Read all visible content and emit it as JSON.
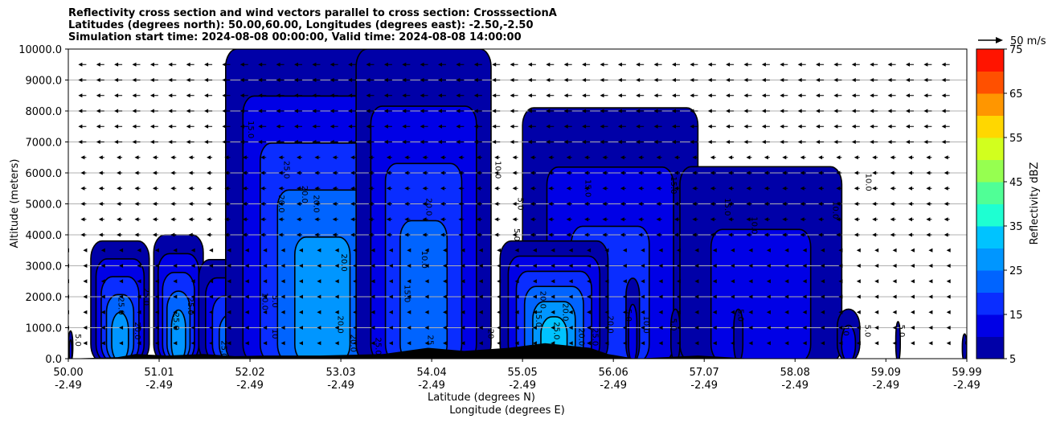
{
  "chart_data": {
    "type": "contour",
    "title": {
      "line1": "Reflectivity cross section and wind vectors parallel to cross section: CrosssectionA",
      "line2": "Latitudes (degrees north): 50.00,60.00, Longitudes (degrees east): -2.50,-2.50",
      "line3": "Simulation start time: 2024-08-08 00:00:00, Valid time: 2024-08-08 14:00:00"
    },
    "ylabel": "Altitude (meters)",
    "xlabel_lat": "Latitude (degrees N)",
    "xlabel_lon": "Longitude (degrees E)",
    "xlim": [
      50.0,
      59.99
    ],
    "ylim": [
      0,
      10000
    ],
    "x_ticks": [
      {
        "lat": "50.00",
        "lon": "-2.49",
        "value": 50.0
      },
      {
        "lat": "51.01",
        "lon": "-2.49",
        "value": 51.01
      },
      {
        "lat": "52.02",
        "lon": "-2.49",
        "value": 52.02
      },
      {
        "lat": "53.03",
        "lon": "-2.49",
        "value": 53.03
      },
      {
        "lat": "54.04",
        "lon": "-2.49",
        "value": 54.04
      },
      {
        "lat": "55.05",
        "lon": "-2.49",
        "value": 55.05
      },
      {
        "lat": "56.06",
        "lon": "-2.49",
        "value": 56.06
      },
      {
        "lat": "57.07",
        "lon": "-2.49",
        "value": 57.07
      },
      {
        "lat": "58.08",
        "lon": "-2.49",
        "value": 58.08
      },
      {
        "lat": "59.09",
        "lon": "-2.49",
        "value": 59.09
      },
      {
        "lat": "59.99",
        "lon": "-2.49",
        "value": 59.99
      }
    ],
    "y_ticks": [
      {
        "label": "0.0",
        "value": 0
      },
      {
        "label": "1000.0",
        "value": 1000
      },
      {
        "label": "2000.0",
        "value": 2000
      },
      {
        "label": "3000.0",
        "value": 3000
      },
      {
        "label": "4000.0",
        "value": 4000
      },
      {
        "label": "5000.0",
        "value": 5000
      },
      {
        "label": "6000.0",
        "value": 6000
      },
      {
        "label": "7000.0",
        "value": 7000
      },
      {
        "label": "8000.0",
        "value": 8000
      },
      {
        "label": "9000.0",
        "value": 9000
      },
      {
        "label": "10000.0",
        "value": 10000
      }
    ],
    "grid": "horizontal",
    "vector_key": "50 m/s",
    "colorbar": {
      "label": "Reflectivity dBZ",
      "levels": [
        5,
        10,
        15,
        20,
        25,
        30,
        35,
        40,
        45,
        50,
        55,
        60,
        65,
        70,
        75
      ],
      "tick_labels": [
        "5",
        "15",
        "25",
        "35",
        "45",
        "55",
        "65",
        "75"
      ],
      "colors": [
        "#0000a8",
        "#0000e6",
        "#0a2dff",
        "#0064ff",
        "#0096ff",
        "#00c3ff",
        "#1effd2",
        "#50ff96",
        "#96ff50",
        "#d2ff1e",
        "#ffd700",
        "#ff9600",
        "#ff5000",
        "#ff1400",
        "#a80000"
      ]
    },
    "cells": [
      {
        "lat": [
          50.0,
          50.05
        ],
        "top": 900,
        "max_dbz": 10
      },
      {
        "lat": [
          50.25,
          50.9
        ],
        "top": 3800,
        "max_dbz": 25
      },
      {
        "lat": [
          50.95,
          51.5
        ],
        "top": 4000,
        "max_dbz": 25
      },
      {
        "lat": [
          51.45,
          52.15
        ],
        "top": 3200,
        "max_dbz": 20
      },
      {
        "lat": [
          51.75,
          53.9
        ],
        "top": 10000,
        "max_dbz": 25
      },
      {
        "lat": [
          53.2,
          54.7
        ],
        "top": 10000,
        "max_dbz": 20
      },
      {
        "lat": [
          55.05,
          57.0
        ],
        "top": 8100,
        "max_dbz": 15
      },
      {
        "lat": [
          56.8,
          58.6
        ],
        "top": 6200,
        "max_dbz": 10
      },
      {
        "lat": [
          54.8,
          56.0
        ],
        "top": 3800,
        "max_dbz": 30
      },
      {
        "lat": [
          56.2,
          56.35
        ],
        "top": 2600,
        "max_dbz": 10
      },
      {
        "lat": [
          56.7,
          56.8
        ],
        "top": 1600,
        "max_dbz": 5
      },
      {
        "lat": [
          57.4,
          57.5
        ],
        "top": 1600,
        "max_dbz": 5
      },
      {
        "lat": [
          58.55,
          58.8
        ],
        "top": 1600,
        "max_dbz": 10
      },
      {
        "lat": [
          59.2,
          59.25
        ],
        "top": 1200,
        "max_dbz": 5
      },
      {
        "lat": [
          59.94,
          59.99
        ],
        "top": 800,
        "max_dbz": 5
      }
    ],
    "contour_labels": [
      {
        "text": "5.0",
        "lat": 50.08,
        "alt": 600
      },
      {
        "text": "25.0",
        "lat": 50.56,
        "alt": 1700
      },
      {
        "text": "25.0",
        "lat": 50.84,
        "alt": 2000
      },
      {
        "text": "20.0",
        "lat": 50.74,
        "alt": 900
      },
      {
        "text": "25.0",
        "lat": 51.17,
        "alt": 1200
      },
      {
        "text": "25.0",
        "lat": 51.33,
        "alt": 1700
      },
      {
        "text": "25.0",
        "lat": 51.7,
        "alt": 300
      },
      {
        "text": "10.0",
        "lat": 52.16,
        "alt": 1850
      },
      {
        "text": "5.0",
        "lat": 52.27,
        "alt": 1850
      },
      {
        "text": "10",
        "lat": 52.27,
        "alt": 800
      },
      {
        "text": "15.0",
        "lat": 52.0,
        "alt": 7400
      },
      {
        "text": "25.0",
        "lat": 52.4,
        "alt": 6100
      },
      {
        "text": "20.0",
        "lat": 52.34,
        "alt": 5000
      },
      {
        "text": "20.0",
        "lat": 52.6,
        "alt": 5300
      },
      {
        "text": "20.0",
        "lat": 52.73,
        "alt": 5000
      },
      {
        "text": "20.0",
        "lat": 53.04,
        "alt": 3100
      },
      {
        "text": "20.0",
        "lat": 53.0,
        "alt": 1100
      },
      {
        "text": "20.0",
        "lat": 53.14,
        "alt": 500
      },
      {
        "text": "25.0",
        "lat": 53.42,
        "alt": 400
      },
      {
        "text": "10.0",
        "lat": 54.75,
        "alt": 6100
      },
      {
        "text": "10.0",
        "lat": 53.93,
        "alt": 3200
      },
      {
        "text": "15.0",
        "lat": 53.74,
        "alt": 2100
      },
      {
        "text": "20.0",
        "lat": 53.98,
        "alt": 4900
      },
      {
        "text": "25",
        "lat": 54.0,
        "alt": 600
      },
      {
        "text": "20",
        "lat": 54.67,
        "alt": 800
      },
      {
        "text": "5.0",
        "lat": 54.96,
        "alt": 4000
      },
      {
        "text": "5.0",
        "lat": 55.0,
        "alt": 5000
      },
      {
        "text": "20.0",
        "lat": 55.25,
        "alt": 1900
      },
      {
        "text": "15.0",
        "lat": 55.2,
        "alt": 1300
      },
      {
        "text": "20.0",
        "lat": 55.5,
        "alt": 1500
      },
      {
        "text": "25.0",
        "lat": 55.4,
        "alt": 900
      },
      {
        "text": "20.0",
        "lat": 55.68,
        "alt": 700
      },
      {
        "text": "25.0",
        "lat": 55.83,
        "alt": 700
      },
      {
        "text": "20.0",
        "lat": 56.0,
        "alt": 1100
      },
      {
        "text": "15.0",
        "lat": 55.75,
        "alt": 5500
      },
      {
        "text": "15.0",
        "lat": 56.7,
        "alt": 5600
      },
      {
        "text": "15.0",
        "lat": 57.3,
        "alt": 4900
      },
      {
        "text": "10.0",
        "lat": 57.6,
        "alt": 4300
      },
      {
        "text": "10.0",
        "lat": 58.5,
        "alt": 4800
      },
      {
        "text": "10.0",
        "lat": 58.87,
        "alt": 5700
      },
      {
        "text": "5.0",
        "lat": 56.2,
        "alt": 1400
      },
      {
        "text": "10.0",
        "lat": 56.4,
        "alt": 1100
      },
      {
        "text": "5.0",
        "lat": 56.7,
        "alt": 1100
      },
      {
        "text": "5.0",
        "lat": 57.45,
        "alt": 1400
      },
      {
        "text": "10",
        "lat": 58.62,
        "alt": 900
      },
      {
        "text": "5.0",
        "lat": 58.86,
        "alt": 900
      },
      {
        "text": "5.0",
        "lat": 59.24,
        "alt": 900
      },
      {
        "text": "5",
        "lat": 59.97,
        "alt": 500
      }
    ],
    "terrain": [
      {
        "lat": 50.0,
        "alt": 0
      },
      {
        "lat": 50.55,
        "alt": 50
      },
      {
        "lat": 50.75,
        "alt": 150
      },
      {
        "lat": 51.1,
        "alt": 100
      },
      {
        "lat": 51.5,
        "alt": 150
      },
      {
        "lat": 51.85,
        "alt": 80
      },
      {
        "lat": 52.2,
        "alt": 100
      },
      {
        "lat": 52.8,
        "alt": 100
      },
      {
        "lat": 53.5,
        "alt": 150
      },
      {
        "lat": 54.0,
        "alt": 350
      },
      {
        "lat": 54.4,
        "alt": 250
      },
      {
        "lat": 54.9,
        "alt": 350
      },
      {
        "lat": 55.3,
        "alt": 500
      },
      {
        "lat": 55.8,
        "alt": 350
      },
      {
        "lat": 56.0,
        "alt": 150
      },
      {
        "lat": 56.3,
        "alt": 0
      },
      {
        "lat": 57.0,
        "alt": 100
      },
      {
        "lat": 57.6,
        "alt": 0
      },
      {
        "lat": 59.99,
        "alt": 0
      }
    ]
  }
}
